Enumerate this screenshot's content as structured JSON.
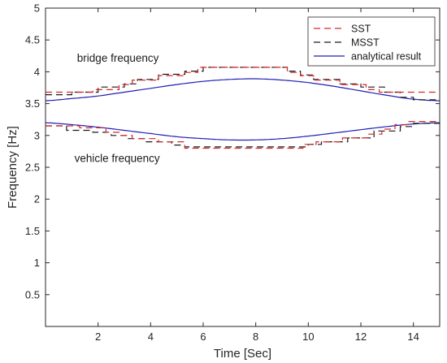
{
  "chart_data": {
    "type": "line",
    "xlabel": "Time [Sec]",
    "ylabel": "Frequency [Hz]",
    "xlim": [
      0,
      15
    ],
    "ylim": [
      0,
      5
    ],
    "xticks": [
      2,
      4,
      6,
      8,
      10,
      12,
      14
    ],
    "yticks": [
      0.5,
      1,
      1.5,
      2,
      2.5,
      3,
      3.5,
      4,
      4.5,
      5
    ],
    "xtick_labels": [
      "2",
      "4",
      "6",
      "8",
      "10",
      "12",
      "14"
    ],
    "ytick_labels": [
      "0.5",
      "1",
      "1.5",
      "2",
      "2.5",
      "3",
      "3.5",
      "4",
      "4.5",
      "5"
    ],
    "grid": false,
    "legend_position": "top-right",
    "legend": [
      "SST",
      "MSST",
      "analytical result"
    ],
    "annotations": [
      {
        "text": "bridge frequency",
        "x": 1.2,
        "y": 4.16
      },
      {
        "text": "vehicle frequency",
        "x": 1.1,
        "y": 2.58
      }
    ],
    "colors": {
      "SST": "#d62728",
      "MSST": "#1a1a1a",
      "analytical": "#1f1fb4"
    },
    "series": [
      {
        "name": "SST",
        "style": "dashed",
        "step": true,
        "x": [
          0,
          1.3,
          1.8,
          2.8,
          3.3,
          4.3,
          5.3,
          5.8,
          9.2,
          9.7,
          10.2,
          11.2,
          12.2,
          12.7,
          13.2,
          13.7,
          15
        ],
        "y": [
          3.68,
          3.68,
          3.72,
          3.8,
          3.87,
          3.94,
          3.99,
          4.07,
          3.99,
          3.94,
          3.87,
          3.8,
          3.72,
          3.68,
          3.68,
          3.68,
          3.68
        ]
      },
      {
        "name": "MSST",
        "style": "dashed",
        "step": true,
        "x": [
          0,
          1.0,
          2.0,
          3.0,
          3.5,
          4.3,
          5.3,
          6.0,
          9.2,
          9.7,
          10.2,
          11.2,
          12.0,
          12.9,
          13.5,
          14.0,
          15
        ],
        "y": [
          3.64,
          3.68,
          3.76,
          3.81,
          3.88,
          3.96,
          4.01,
          4.07,
          4.01,
          3.95,
          3.88,
          3.81,
          3.76,
          3.68,
          3.6,
          3.56,
          3.56
        ]
      },
      {
        "name": "SST",
        "style": "dashed",
        "step": true,
        "x": [
          0,
          1.3,
          2.3,
          2.8,
          3.3,
          4.3,
          5.3,
          9.8,
          10.3,
          11.3,
          12.3,
          12.8,
          13.3,
          13.8,
          14.3,
          15
        ],
        "y": [
          3.15,
          3.12,
          3.05,
          3.0,
          2.95,
          2.9,
          2.8,
          2.86,
          2.9,
          2.96,
          3.02,
          3.1,
          3.17,
          3.22,
          3.22,
          3.22
        ]
      },
      {
        "name": "MSST",
        "style": "dashed",
        "step": true,
        "x": [
          0,
          0.8,
          1.8,
          2.5,
          3.1,
          3.8,
          4.8,
          5.3,
          10.0,
          10.5,
          11.5,
          12.5,
          13.5,
          14.0,
          15
        ],
        "y": [
          3.15,
          3.08,
          3.05,
          3.0,
          2.95,
          2.9,
          2.85,
          2.82,
          2.86,
          2.9,
          2.96,
          3.07,
          3.14,
          3.19,
          3.2
        ]
      },
      {
        "name": "analytical result",
        "style": "solid",
        "step": false,
        "x": [
          0,
          1,
          2,
          3,
          4,
          5,
          6,
          7,
          8,
          9,
          10,
          11,
          12,
          13,
          14,
          15
        ],
        "y": [
          3.545,
          3.58,
          3.62,
          3.68,
          3.74,
          3.8,
          3.85,
          3.88,
          3.89,
          3.87,
          3.83,
          3.77,
          3.7,
          3.63,
          3.57,
          3.545
        ]
      },
      {
        "name": "analytical result",
        "style": "solid",
        "step": false,
        "x": [
          0,
          1,
          2,
          3,
          4,
          5,
          6,
          7,
          8,
          9,
          10,
          11,
          12,
          13,
          14,
          15
        ],
        "y": [
          3.2,
          3.17,
          3.13,
          3.08,
          3.03,
          2.98,
          2.95,
          2.93,
          2.93,
          2.95,
          2.99,
          3.04,
          3.09,
          3.14,
          3.18,
          3.2
        ]
      }
    ]
  }
}
